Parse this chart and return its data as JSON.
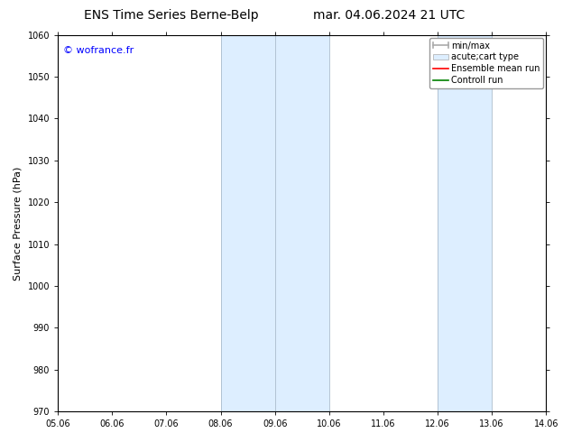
{
  "title_left": "ENS Time Series Berne-Belp",
  "title_right": "mar. 04.06.2024 21 UTC",
  "ylabel": "Surface Pressure (hPa)",
  "xlim": [
    0,
    9
  ],
  "ylim": [
    970,
    1060
  ],
  "yticks": [
    970,
    980,
    990,
    1000,
    1010,
    1020,
    1030,
    1040,
    1050,
    1060
  ],
  "xtick_labels": [
    "05.06",
    "06.06",
    "07.06",
    "08.06",
    "09.06",
    "10.06",
    "11.06",
    "12.06",
    "13.06",
    "14.06"
  ],
  "shaded_bands": [
    {
      "x_start": 3,
      "x_end": 4,
      "color": "#ddeeff"
    },
    {
      "x_start": 4,
      "x_end": 5,
      "color": "#ddeeff"
    },
    {
      "x_start": 7,
      "x_end": 8,
      "color": "#ddeeff"
    }
  ],
  "band_edge_color": "#aabbcc",
  "watermark": "© wofrance.fr",
  "watermark_color": "blue",
  "background_color": "#ffffff",
  "legend_labels": [
    "min/max",
    "acute;cart type",
    "Ensemble mean run",
    "Controll run"
  ],
  "legend_colors": [
    "#aaaaaa",
    "#ddeeff",
    "red",
    "green"
  ],
  "title_fontsize": 10,
  "legend_fontsize": 7,
  "axis_label_fontsize": 8,
  "tick_fontsize": 7,
  "watermark_fontsize": 8
}
